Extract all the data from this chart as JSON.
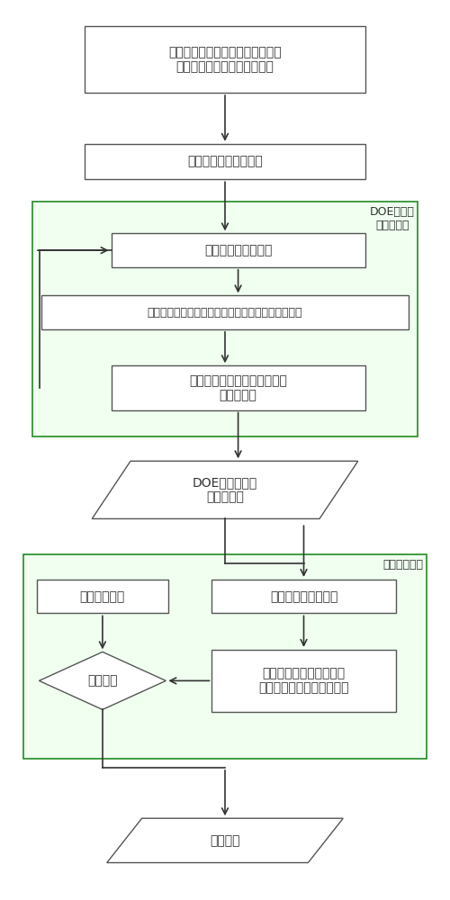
{
  "bg_color": "#ffffff",
  "box_facecolor": "#ffffff",
  "box_edgecolor": "#555555",
  "group_facecolor": "#f0fff0",
  "group_edgecolor": "#228B22",
  "arrow_color": "#333333",
  "font_color": "#333333",
  "lw": 1.0,
  "arrow_lw": 1.2,
  "box1_text": "模型建立瞬态动力学有限元模型并\n计算，提取瞬态冲击载荷峰值",
  "box2_text": "接触面几何尺寸参数化",
  "box3_text": "改变接触面几何尺寸",
  "box4_text": "重新生成有限元模型并计算，提取瞬态冲击载荷峰值",
  "box5_text": "记录接触面几何尺寸及瞬态冲\n击载荷峰值",
  "para1_text": "DOE计算及敏感\n度分析结果",
  "box_grad_text": "梯度优化算法",
  "box6_text": "改变接触面几何尺寸",
  "box7_text": "重新生成有限元模型并计\n算，提取瞬态冲击载荷峰值",
  "diamond_text": "结果比较",
  "para2_text": "最优结果",
  "doe_group_label": "DOE计算及\n敏感度分析",
  "wave_group_label": "波音探索算法",
  "fs_main": 10,
  "fs_small": 9,
  "fs_label": 9
}
